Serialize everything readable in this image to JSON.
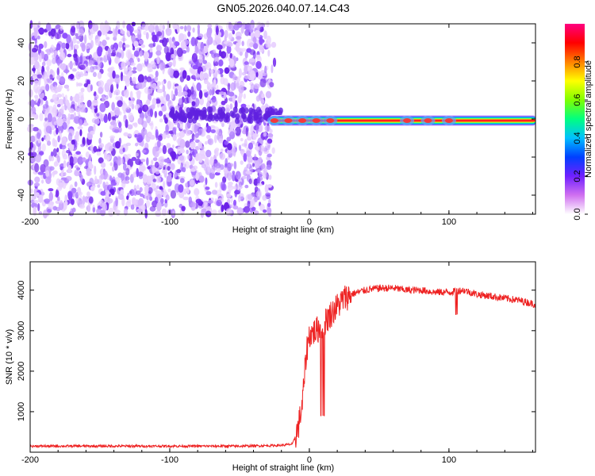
{
  "title": "GN05.2026.040.07.14.C43",
  "chart_data": [
    {
      "type": "heatmap",
      "xlabel": "Height of straight line (km)",
      "ylabel": "Frequency (Hz)",
      "xlim": [
        -200,
        162
      ],
      "ylim": [
        -50,
        50
      ],
      "xticks": [
        -200,
        -100,
        0,
        100
      ],
      "yticks": [
        -40,
        -20,
        0,
        20,
        40
      ],
      "colorbar": {
        "label": "Normalized spectral amplitude",
        "range": [
          0,
          1
        ],
        "ticks": [
          "0.0",
          "0.2",
          "0.4",
          "0.6",
          "0.8"
        ],
        "colors": [
          "#ffffff",
          "#d070f0",
          "#7020ff",
          "#0040ff",
          "#00c0ff",
          "#00ff80",
          "#80ff00",
          "#ffff00",
          "#ff8000",
          "#ff0000",
          "#ff0080"
        ]
      },
      "regions": [
        {
          "name": "noise",
          "x": [
            -200,
            -28
          ],
          "y": [
            -50,
            50
          ],
          "amplitude": [
            0.0,
            0.2
          ]
        },
        {
          "name": "signal-band",
          "x": [
            -28,
            162
          ],
          "y": [
            -2.5,
            2.5
          ],
          "amplitude": [
            0.6,
            1.0
          ]
        }
      ]
    },
    {
      "type": "line",
      "xlabel": "Height of straight line (km)",
      "ylabel": "SNR (10 * v/v)",
      "xlim": [
        -200,
        162
      ],
      "ylim": [
        0,
        4700
      ],
      "xticks": [
        -200,
        -100,
        0,
        100
      ],
      "yticks": [
        1000,
        2000,
        3000,
        4000
      ],
      "color": "#ee2222",
      "x": [
        -200,
        -150,
        -100,
        -50,
        -20,
        -12,
        -8,
        -5,
        -2,
        0,
        5,
        10,
        15,
        20,
        25,
        30,
        40,
        50,
        60,
        70,
        80,
        90,
        100,
        110,
        120,
        130,
        140,
        150,
        162
      ],
      "y": [
        150,
        150,
        150,
        150,
        170,
        200,
        600,
        1200,
        2500,
        2900,
        3000,
        3150,
        3400,
        3600,
        3800,
        3900,
        4000,
        4050,
        4050,
        4000,
        4000,
        3950,
        3950,
        4000,
        3900,
        3850,
        3800,
        3750,
        3650
      ]
    }
  ]
}
